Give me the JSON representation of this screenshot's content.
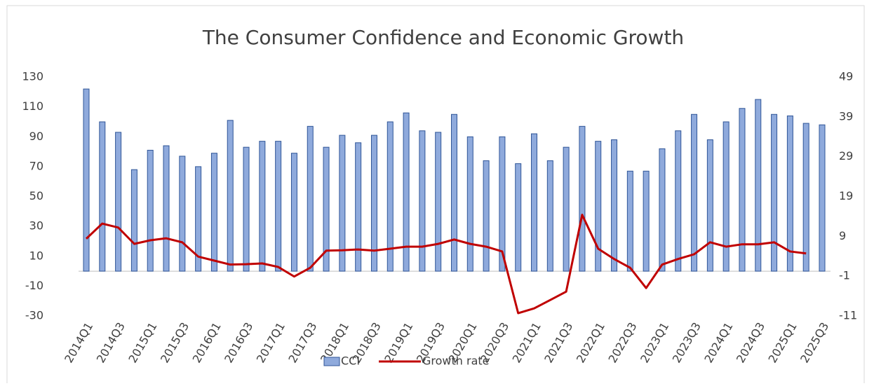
{
  "chart_data": {
    "type": "bar-line",
    "title": "The Consumer Confidence and Economic Growth",
    "categories": [
      "2014Q1",
      null,
      "2014Q3",
      null,
      "2015Q1",
      null,
      "2015Q3",
      null,
      "2016Q1",
      null,
      "2016Q3",
      null,
      "2017Q1",
      null,
      "2017Q3",
      null,
      "2018Q1",
      null,
      "2018Q3",
      null,
      "2019Q1",
      null,
      "2019Q3",
      null,
      "2020Q1",
      null,
      "2020Q3",
      null,
      "2021Q1",
      null,
      "2021Q3",
      null,
      "2022Q1",
      null,
      "2022Q3",
      null,
      "2023Q1",
      null,
      "2023Q3",
      null,
      "2024Q1",
      null,
      "2024Q3",
      null,
      "2025Q1",
      null,
      "2025Q3"
    ],
    "series": [
      {
        "name": "CCI",
        "type": "bar",
        "color": "#8faadc",
        "values": [
          122,
          100,
          93,
          68,
          81,
          84,
          77,
          70,
          79,
          101,
          83,
          87,
          87,
          79,
          97,
          83,
          91,
          86,
          91,
          100,
          106,
          94,
          93,
          105,
          90,
          74,
          90,
          72,
          92,
          74,
          83,
          97,
          87,
          88,
          67,
          67,
          82,
          94,
          105,
          88,
          100,
          109,
          115,
          105,
          104,
          99,
          98
        ]
      },
      {
        "name": "Growth rate",
        "type": "line",
        "axis": "y2",
        "color": "#c00000",
        "values": [
          8.4,
          12.2,
          11.2,
          7.1,
          8.0,
          8.5,
          7.5,
          3.9,
          2.9,
          1.9,
          2.0,
          2.2,
          1.3,
          -1.1,
          1.1,
          5.4,
          5.5,
          5.7,
          5.4,
          5.9,
          6.4,
          6.4,
          7.1,
          8.2,
          7.1,
          6.4,
          5.2,
          -10.3,
          -9.1,
          -7.0,
          -4.9,
          14.4,
          5.9,
          3.3,
          1.1,
          -4.0,
          1.9,
          3.3,
          4.5,
          7.5,
          6.4,
          7.0,
          7.0,
          7.5,
          5.2,
          4.7,
          null
        ]
      }
    ],
    "ylim": [
      -30,
      130
    ],
    "yticks": [
      -30,
      -10,
      10,
      30,
      50,
      70,
      90,
      110,
      130
    ],
    "y2lim": [
      -11,
      49
    ],
    "y2ticks": [
      -11,
      -1,
      9,
      19,
      29,
      39,
      49
    ],
    "legend": "bottom"
  }
}
